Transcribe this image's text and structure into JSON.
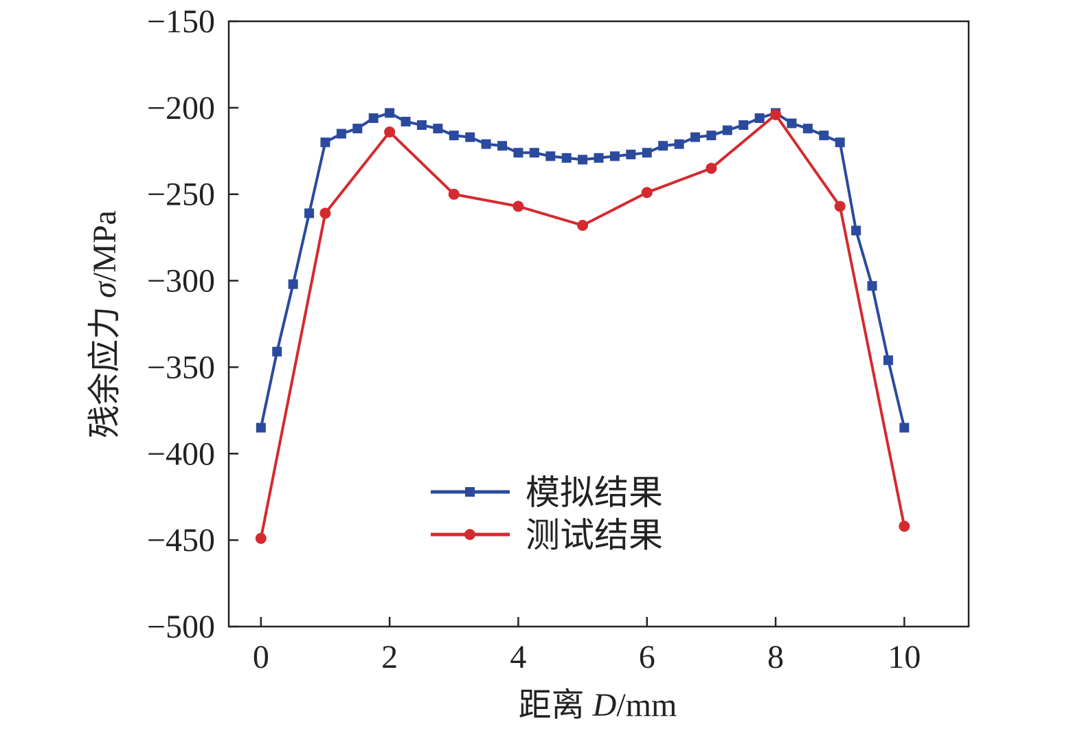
{
  "chart_data": {
    "type": "line",
    "title": "",
    "xlabel_prefix": "距离 ",
    "xlabel_var": "D",
    "xlabel_unit": "/mm",
    "ylabel_prefix": "残余应力 ",
    "ylabel_var": "σ",
    "ylabel_unit": "/MPa",
    "xlim": [
      -0.5,
      11
    ],
    "ylim": [
      -500,
      -150
    ],
    "xticks": [
      0,
      2,
      4,
      6,
      8,
      10
    ],
    "yticks": [
      -150,
      -200,
      -250,
      -300,
      -350,
      -400,
      -450,
      -500
    ],
    "ytick_labels": [
      "−150",
      "−200",
      "−250",
      "−300",
      "−350",
      "−400",
      "−450",
      "−500"
    ],
    "grid": false,
    "legend_position": "lower-center",
    "series": [
      {
        "name": "模拟结果",
        "color": "#2b4a9e",
        "marker": "square",
        "x": [
          0,
          0.25,
          0.5,
          0.75,
          1,
          1.25,
          1.5,
          1.75,
          2,
          2.25,
          2.5,
          2.75,
          3,
          3.25,
          3.5,
          3.75,
          4,
          4.25,
          4.5,
          4.75,
          5,
          5.25,
          5.5,
          5.75,
          6,
          6.25,
          6.5,
          6.75,
          7,
          7.25,
          7.5,
          7.75,
          8,
          8.25,
          8.5,
          8.75,
          9,
          9.25,
          9.5,
          9.75,
          10
        ],
        "values": [
          -385,
          -341,
          -302,
          -261,
          -220,
          -215,
          -212,
          -206,
          -203,
          -208,
          -210,
          -212,
          -216,
          -217,
          -221,
          -222,
          -226,
          -226,
          -228,
          -229,
          -230,
          -229,
          -228,
          -227,
          -226,
          -222,
          -221,
          -217,
          -216,
          -213,
          -210,
          -206,
          -203,
          -209,
          -212,
          -216,
          -220,
          -271,
          -303,
          -346,
          -385
        ]
      },
      {
        "name": "测试结果",
        "color": "#d42a2f",
        "marker": "circle",
        "x": [
          0,
          1,
          2,
          3,
          4,
          5,
          6,
          7,
          8,
          9,
          10
        ],
        "values": [
          -449,
          -261,
          -214,
          -250,
          -257,
          -268,
          -249,
          -235,
          -204,
          -257,
          -442
        ]
      }
    ]
  }
}
